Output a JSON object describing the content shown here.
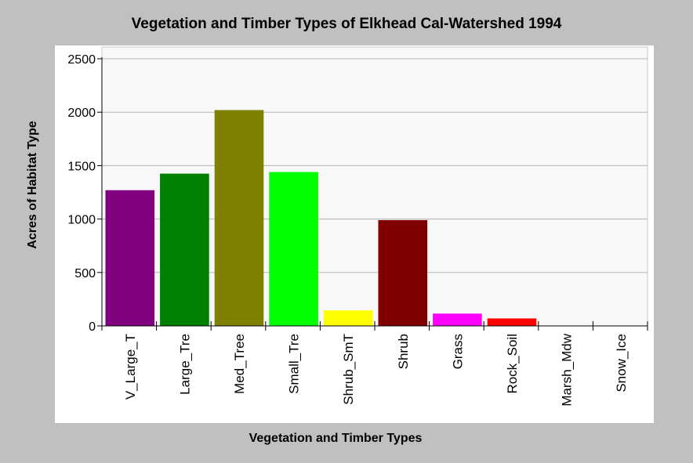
{
  "chart_data": {
    "type": "bar",
    "title": "Vegetation and Timber Types of Elkhead Cal-Watershed 1994",
    "xlabel": "Vegetation and Timber Types",
    "ylabel": "Acres of Habitat Type",
    "categories": [
      "V_Large_T",
      "Large_Tre",
      "Med_Tree",
      "Small_Tre",
      "Shrub_SmT",
      "Shrub",
      "Grass",
      "Rock_Soil",
      "Marsh_Mdw",
      "Snow_Ice"
    ],
    "values": [
      1270,
      1425,
      2020,
      1440,
      145,
      990,
      115,
      70,
      0,
      0
    ],
    "colors": [
      "#800080",
      "#008000",
      "#808000",
      "#00ff00",
      "#ffff00",
      "#800000",
      "#ff00ff",
      "#ff0000",
      "#000000",
      "#000000"
    ],
    "yticks": [
      0,
      500,
      1000,
      1500,
      2000,
      2500
    ],
    "ylim": [
      0,
      2500
    ],
    "grid": true,
    "legend": "none"
  }
}
